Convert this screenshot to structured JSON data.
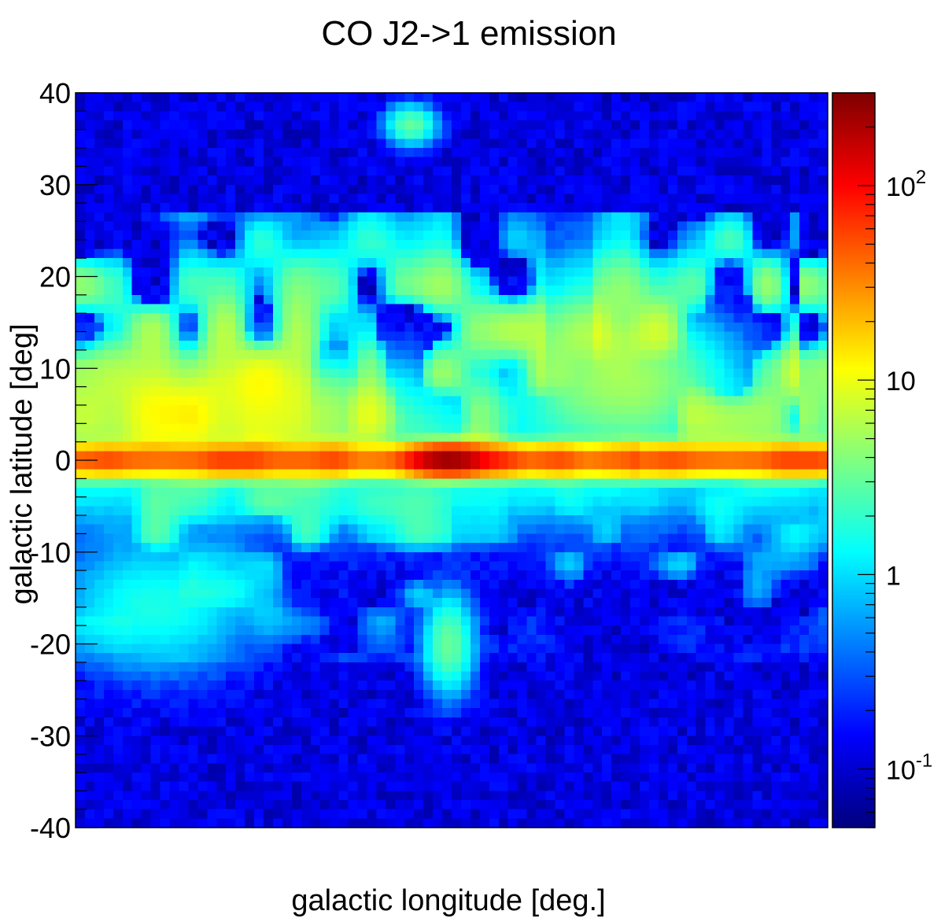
{
  "chart_data": {
    "type": "heatmap",
    "title": "CO J2->1 emission",
    "xlabel": "galactic longitude [deg.]",
    "ylabel": "galactic latitude [deg]",
    "ylim": [
      -40,
      40
    ],
    "y_ticks": [
      {
        "value": 40,
        "label": "40"
      },
      {
        "value": 30,
        "label": "30"
      },
      {
        "value": 20,
        "label": "20"
      },
      {
        "value": 10,
        "label": "10"
      },
      {
        "value": 0,
        "label": "0"
      },
      {
        "value": -10,
        "label": "-10"
      },
      {
        "value": -20,
        "label": "-20"
      },
      {
        "value": -30,
        "label": "-30"
      },
      {
        "value": -40,
        "label": "-40"
      }
    ],
    "x_ticks_shown": false,
    "colorbar": {
      "scale": "log",
      "range": [
        0.05,
        300
      ],
      "colormap": "jet",
      "ticks": [
        {
          "value": 0.1,
          "base": "10",
          "exp": "-1"
        },
        {
          "value": 1,
          "base": "1",
          "exp": ""
        },
        {
          "value": 10,
          "base": "10",
          "exp": ""
        },
        {
          "value": 100,
          "base": "10",
          "exp": "2"
        }
      ]
    },
    "grid": {
      "nx": 80,
      "ny": 80,
      "background_level": 0.12
    },
    "features": [
      {
        "name": "galactic plane",
        "b_center": 0,
        "b_width": 1.2,
        "peak": 55
      },
      {
        "name": "galactic center",
        "b_center": 0,
        "peak": 280
      },
      {
        "name": "northern clouds",
        "b_range": [
          2,
          28
        ],
        "typical": 2.5
      },
      {
        "name": "high-latitude cloud north",
        "b_center": 36,
        "typical": 3
      },
      {
        "name": "southern filament",
        "b_range": [
          -25,
          -17
        ],
        "typical": 3
      },
      {
        "name": "southern clouds",
        "b_range": [
          -20,
          -3
        ],
        "typical": 1
      }
    ],
    "colors": {
      "min": "#00008f",
      "low": "#0055ff",
      "mid_low": "#00cfff",
      "mid": "#a0ff60",
      "mid_high": "#ffc800",
      "high": "#ff3000",
      "max": "#7f0000"
    }
  }
}
